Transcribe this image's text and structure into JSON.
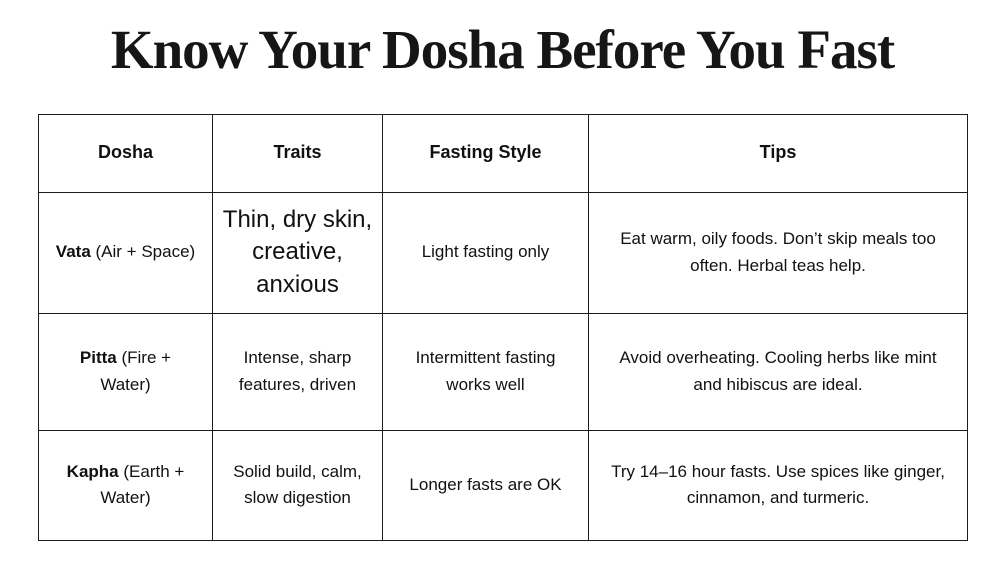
{
  "page": {
    "title": "Know Your Dosha Before You Fast"
  },
  "table": {
    "headers": [
      "Dosha",
      "Traits",
      "Fasting Style",
      "Tips"
    ],
    "rows": [
      {
        "dosha_name": "Vata",
        "dosha_suffix": " (Air + Space)",
        "traits": "Thin, dry skin, creative, anxious",
        "fasting_style": "Light fasting only",
        "tips": "Eat warm, oily foods. Don’t skip meals too often. Herbal teas help."
      },
      {
        "dosha_name": "Pitta",
        "dosha_suffix": " (Fire + Water)",
        "traits": "Intense, sharp features, driven",
        "fasting_style": "Intermittent fasting works well",
        "tips": "Avoid overheating. Cooling herbs like mint and hibiscus are ideal."
      },
      {
        "dosha_name": "Kapha",
        "dosha_suffix": " (Earth + Water)",
        "traits": "Solid build, calm, slow digestion",
        "fasting_style": "Longer fasts are OK",
        "tips": "Try 14–16 hour fasts. Use spices like ginger, cinnamon, and turmeric."
      }
    ]
  }
}
